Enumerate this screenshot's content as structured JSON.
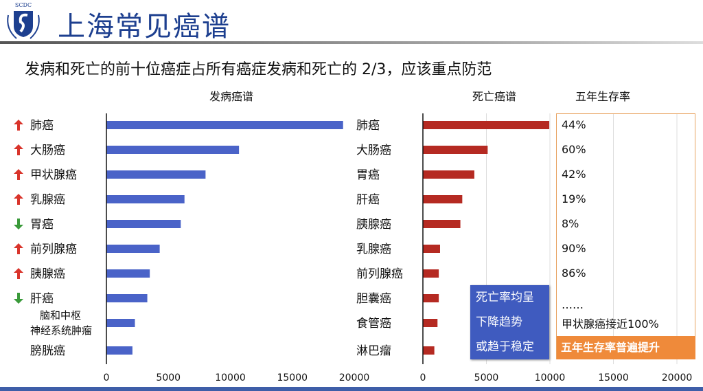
{
  "header": {
    "title": "上海常见癌谱",
    "logo_text": "SCDC"
  },
  "subtitle": "发病和死亡的前十位癌症占所有癌症发病和死亡的 2/3，应该重点防范",
  "colors": {
    "incidence_bar": "#4a63c8",
    "mortality_bar": "#b52a22",
    "up_arrow": "#d9342b",
    "down_arrow": "#3a9a3a",
    "survival_border": "#e8a260",
    "callout_orange": "#ef8a3a",
    "callout_blue": "#3f5bbf"
  },
  "chart_data": [
    {
      "type": "bar",
      "orientation": "horizontal",
      "title": "发病癌谱",
      "categories": [
        "肺癌",
        "大肠癌",
        "甲状腺癌",
        "乳腺癌",
        "胃癌",
        "前列腺癌",
        "胰腺癌",
        "肝癌",
        "脑和中枢\n神经系统肿瘤",
        "膀胱癌"
      ],
      "trend": [
        "up",
        "up",
        "up",
        "up",
        "down",
        "up",
        "up",
        "down",
        "",
        ""
      ],
      "values": [
        19100,
        10700,
        8000,
        6300,
        6000,
        4300,
        3500,
        3300,
        2300,
        2100
      ],
      "xlim": [
        0,
        20000
      ],
      "xticks": [
        "0",
        "5000",
        "10000",
        "15000",
        "20000"
      ]
    },
    {
      "type": "bar",
      "orientation": "horizontal",
      "title": "死亡癌谱",
      "categories": [
        "肺癌",
        "大肠癌",
        "胃癌",
        "肝癌",
        "胰腺癌",
        "乳腺癌",
        "前列腺癌",
        "胆囊癌",
        "食管癌",
        "淋巴瘤"
      ],
      "values": [
        9950,
        5100,
        4050,
        3100,
        2950,
        1350,
        1250,
        1250,
        1150,
        900
      ],
      "xlim": [
        0,
        20000
      ],
      "xticks": [
        "0",
        "5000",
        "10000",
        "15000",
        "20000"
      ],
      "grid": true
    }
  ],
  "survival": {
    "title": "五年生存率",
    "rates": [
      "44%",
      "60%",
      "42%",
      "19%",
      "8%",
      "90%",
      "86%"
    ],
    "ellipsis": "……",
    "note": "甲状腺癌接近100%",
    "callout": "五年生存率普遍提升"
  },
  "mortality_callout": [
    "死亡率均呈",
    "下降趋势",
    "或趋于稳定"
  ]
}
